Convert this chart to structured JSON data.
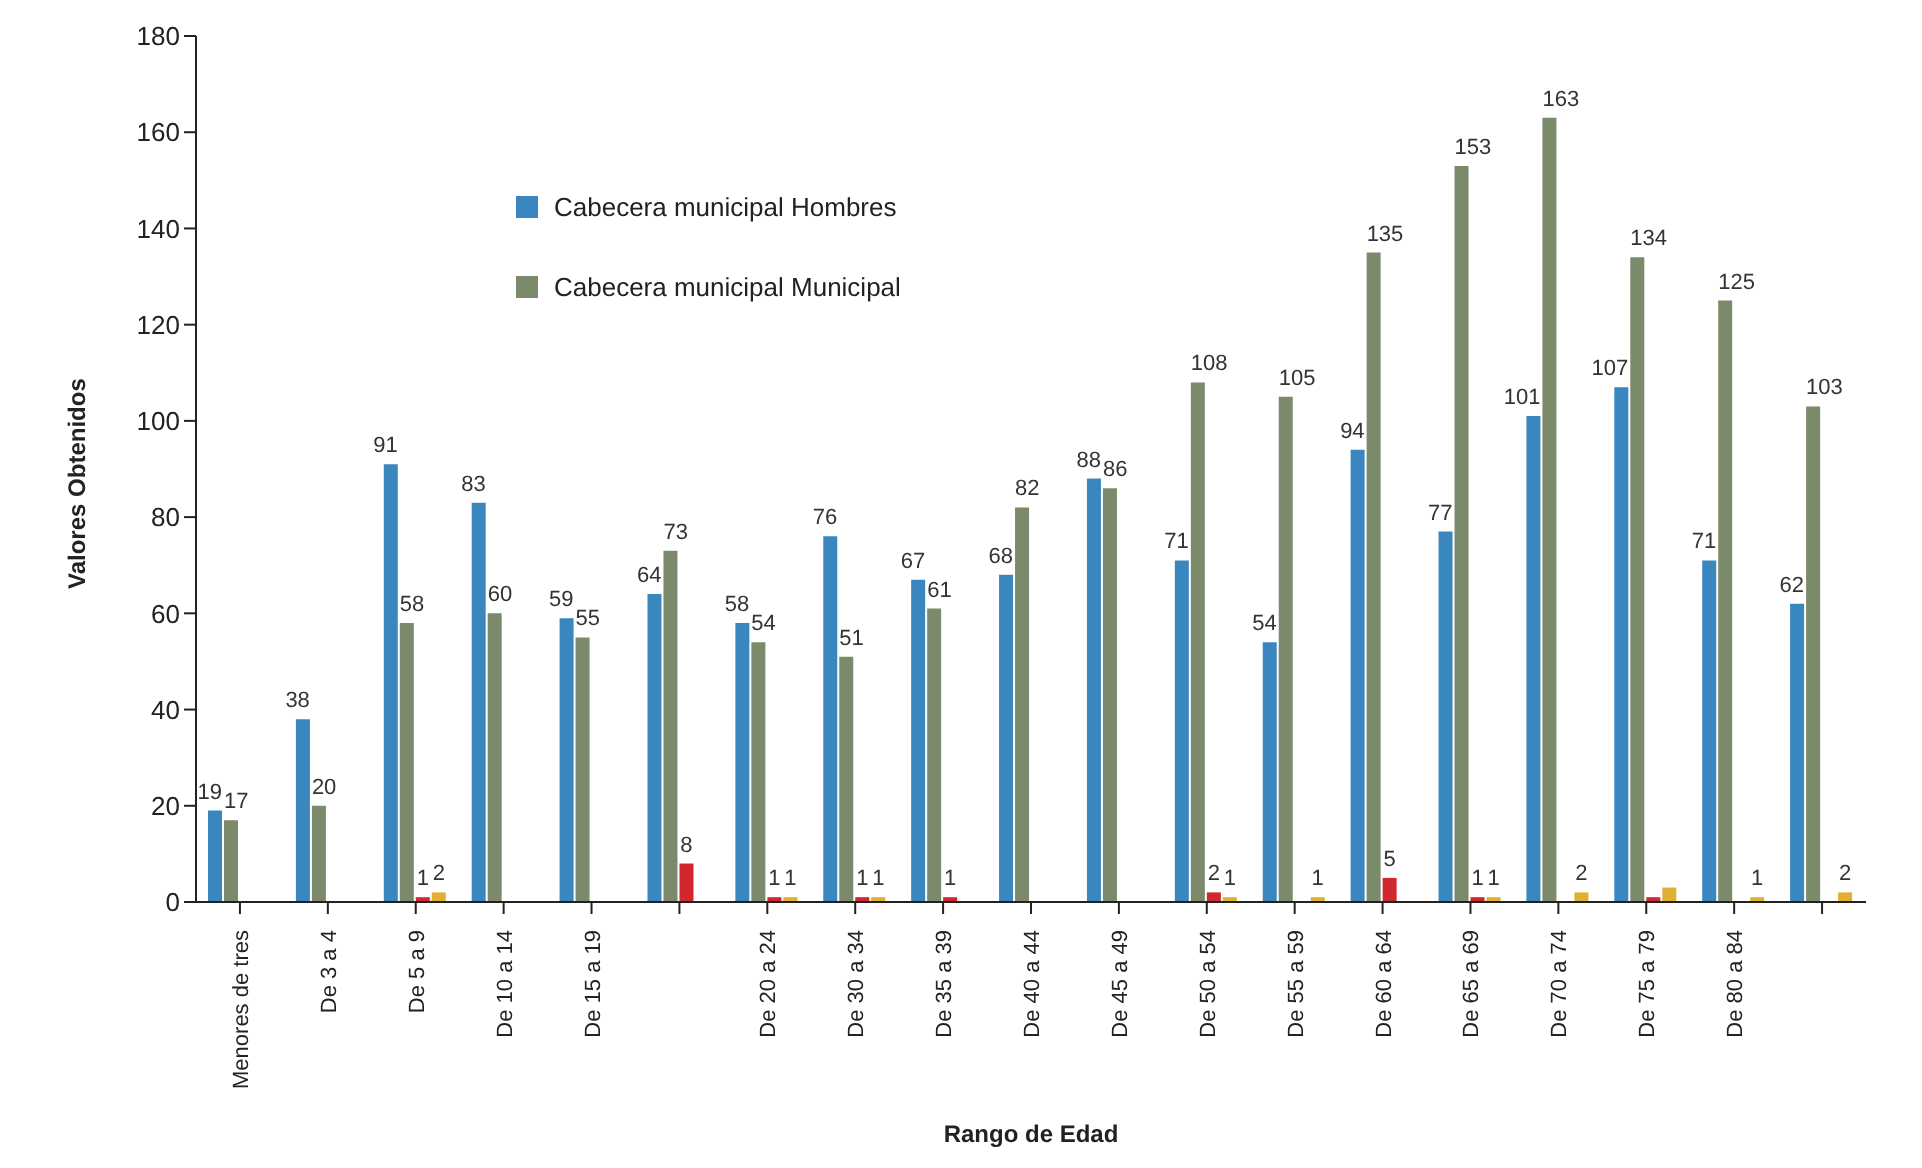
{
  "chart_data": {
    "type": "bar",
    "xlabel": "Rango de Edad",
    "ylabel": "Valores Obtenidos",
    "categories": [
      "Menores de tres",
      "De 3 a 4",
      "De 5 a 9",
      "De 10 a 14",
      "De 15 a 19",
      null,
      "De 20 a 24",
      "De 30 a 34",
      "De 35 a 39",
      "De 40 a 44",
      "De 45 a 49",
      "De 50 a 54",
      "De 55 a 59",
      "De 60 a 64",
      "De 65 a 69",
      "De 70 a 74",
      "De 75 a 79",
      "De 80 a 84",
      null
    ],
    "series": [
      {
        "name": "Cabecera municipal Hombres",
        "color": "#3a87c0",
        "values": [
          19,
          38,
          91,
          83,
          59,
          64,
          58,
          76,
          67,
          68,
          88,
          71,
          54,
          94,
          77,
          101,
          107,
          71,
          62
        ],
        "value_labels": [
          "19",
          "38",
          "91",
          "83",
          "59",
          "64",
          "58",
          "76",
          "67",
          "68",
          "88",
          "71",
          "54",
          "94",
          "77",
          "101",
          "107",
          "71",
          "62"
        ]
      },
      {
        "name": "Cabecera municipal Municipal",
        "color": "#7b8a6a",
        "values": [
          17,
          20,
          58,
          60,
          55,
          73,
          54,
          51,
          61,
          82,
          86,
          108,
          105,
          135,
          153,
          163,
          134,
          125,
          103
        ],
        "value_labels": [
          "17",
          "20",
          "58",
          "60",
          "55",
          "73",
          "54",
          "51",
          "61",
          "82",
          "86",
          "108",
          "105",
          "135",
          "153",
          "163",
          "134",
          "125",
          "103"
        ]
      },
      {
        "color": "#d0282e",
        "values": [
          null,
          null,
          1,
          null,
          null,
          8,
          1,
          1,
          1,
          null,
          null,
          2,
          null,
          5,
          1,
          null,
          1,
          null,
          null
        ],
        "value_labels": [
          null,
          null,
          "1",
          null,
          null,
          "8",
          "1",
          "1",
          "1",
          null,
          null,
          "2",
          null,
          "5",
          "1",
          null,
          null,
          null,
          null
        ]
      },
      {
        "color": "#e0b030",
        "values": [
          null,
          null,
          2,
          null,
          null,
          null,
          1,
          1,
          null,
          null,
          null,
          1,
          1,
          null,
          1,
          2,
          3,
          1,
          2
        ],
        "value_labels": [
          null,
          null,
          "2",
          null,
          null,
          null,
          "1",
          "1",
          null,
          null,
          null,
          "1",
          "1",
          null,
          "1",
          "2",
          null,
          "1",
          "2"
        ]
      }
    ],
    "ylim": [
      0,
      180
    ],
    "yticks": [
      0,
      20,
      40,
      60,
      80,
      100,
      120,
      140,
      160,
      180
    ],
    "grid": false,
    "legend": "top left"
  }
}
